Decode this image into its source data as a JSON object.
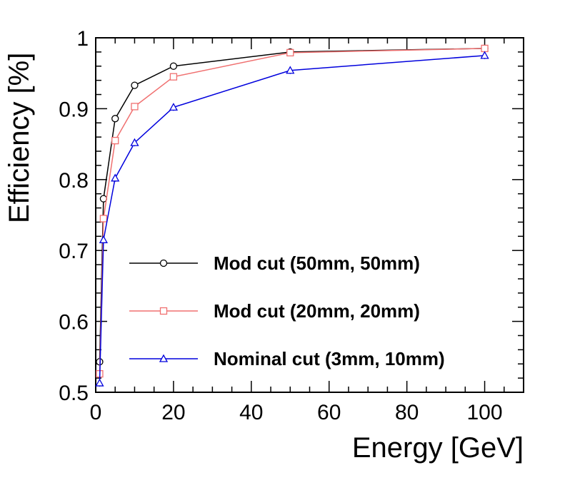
{
  "chart_data": {
    "type": "line",
    "xlabel": "Energy [GeV]",
    "ylabel": "Efficiency [%]",
    "xlim": [
      0,
      110
    ],
    "ylim": [
      0.5,
      1.0
    ],
    "x_ticks": [
      0,
      20,
      40,
      60,
      80,
      100
    ],
    "x_tick_labels": [
      "0",
      "20",
      "40",
      "60",
      "80",
      "100"
    ],
    "y_ticks": [
      0.5,
      0.6,
      0.7,
      0.8,
      0.9,
      1.0
    ],
    "y_tick_labels": [
      "0.5",
      "0.6",
      "0.7",
      "0.8",
      "0.9",
      "1"
    ],
    "grid": false,
    "legend_position": "center-right",
    "series": [
      {
        "name": "Mod cut (50mm, 50mm)",
        "color": "#000000",
        "marker": "circle",
        "x": [
          1,
          2,
          5,
          10,
          20,
          50,
          100
        ],
        "y": [
          0.543,
          0.773,
          0.886,
          0.933,
          0.96,
          0.98,
          0.985
        ]
      },
      {
        "name": "Mod cut (20mm, 20mm)",
        "color": "#f07070",
        "marker": "square",
        "x": [
          1,
          2,
          5,
          10,
          20,
          50,
          100
        ],
        "y": [
          0.526,
          0.745,
          0.855,
          0.903,
          0.945,
          0.979,
          0.985
        ]
      },
      {
        "name": "Nominal cut (3mm, 10mm)",
        "color": "#0000dd",
        "marker": "triangle",
        "x": [
          1,
          2,
          5,
          10,
          20,
          50,
          100
        ],
        "y": [
          0.513,
          0.715,
          0.802,
          0.852,
          0.902,
          0.954,
          0.975
        ]
      }
    ]
  }
}
